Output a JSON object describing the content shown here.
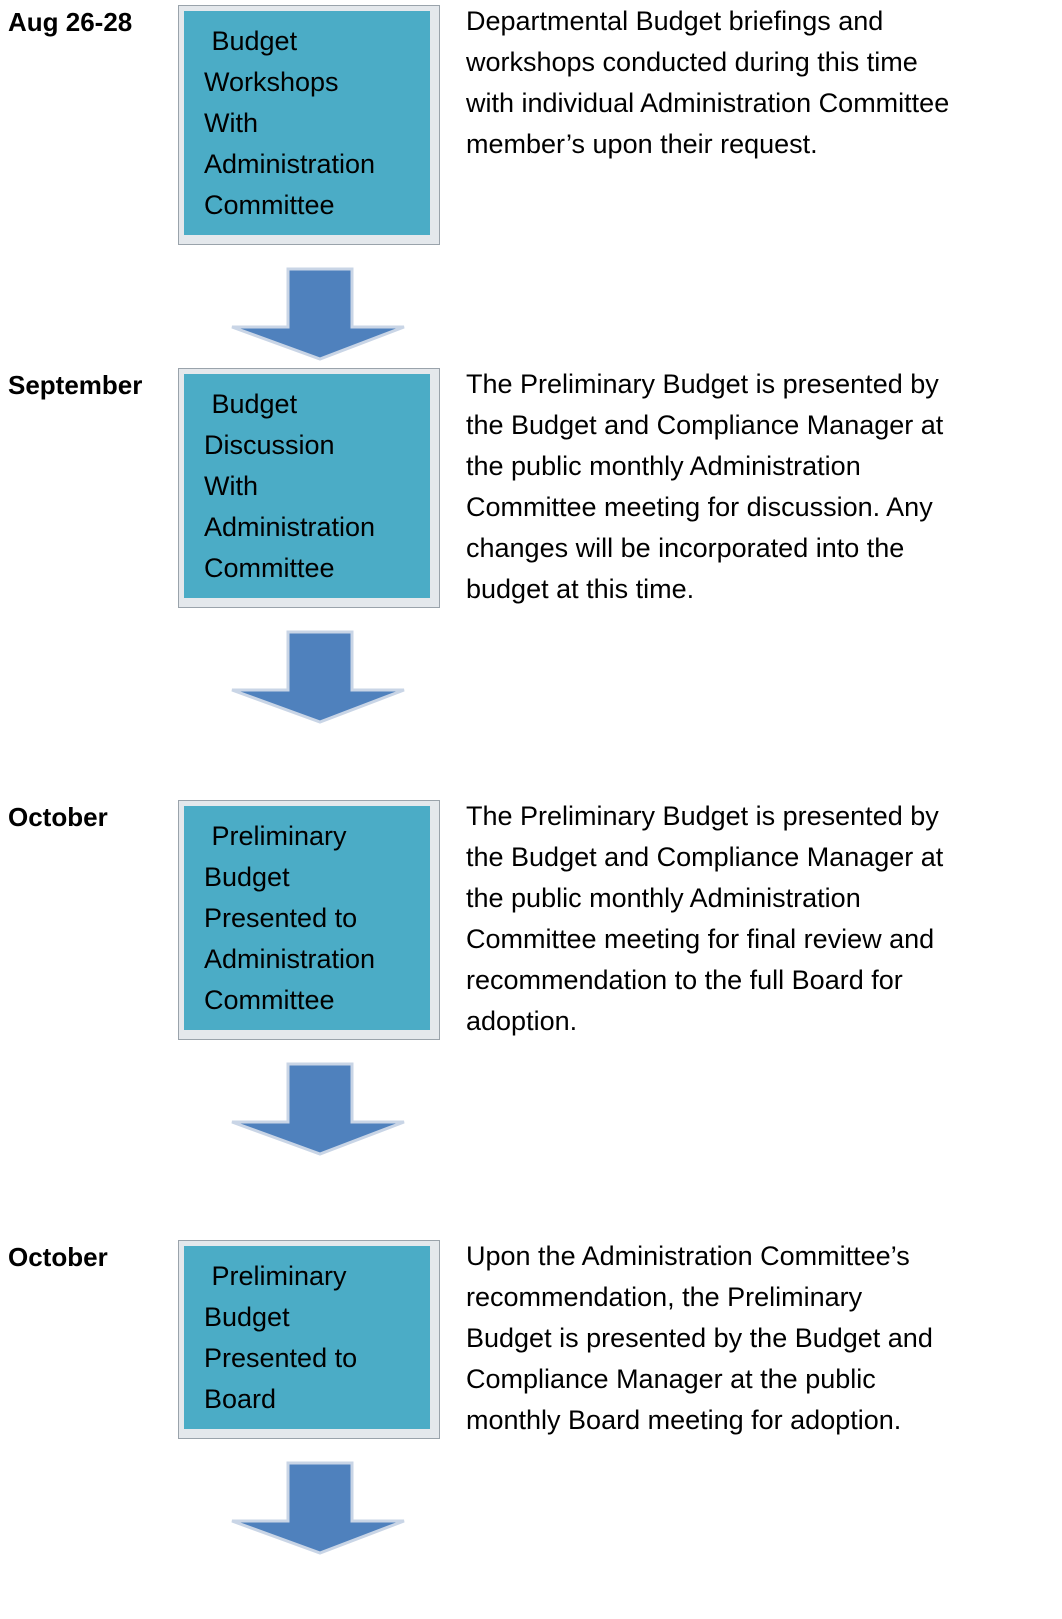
{
  "steps": [
    {
      "date": "Aug 26-28",
      "box": [
        " Budget",
        "Workshops",
        "With",
        "Administration",
        "Committee"
      ],
      "description": [
        "Departmental Budget briefings and",
        "workshops conducted during this time",
        "with individual Administration Committee",
        "member’s upon their request."
      ]
    },
    {
      "date": "September",
      "box": [
        " Budget",
        "Discussion",
        "With",
        "Administration",
        "Committee"
      ],
      "description": [
        "The Preliminary Budget is presented by",
        "the Budget and Compliance Manager at",
        "the public monthly Administration",
        "Committee meeting for discussion. Any",
        "changes will be incorporated into the",
        "budget at this time."
      ]
    },
    {
      "date": "October",
      "box": [
        " Preliminary",
        "Budget",
        "Presented to",
        "Administration",
        "Committee"
      ],
      "description": [
        "The Preliminary Budget is presented by",
        "the Budget and Compliance Manager at",
        "the public monthly Administration",
        "Committee meeting for final review and",
        "recommendation to the full Board for",
        "adoption."
      ]
    },
    {
      "date": "October",
      "box": [
        " Preliminary",
        "Budget",
        "Presented to",
        "Board"
      ],
      "description": [
        "Upon the Administration Committee’s",
        "recommendation, the Preliminary",
        "Budget is presented by the Budget and",
        "Compliance Manager at the public",
        "monthly Board meeting for adoption."
      ]
    }
  ]
}
